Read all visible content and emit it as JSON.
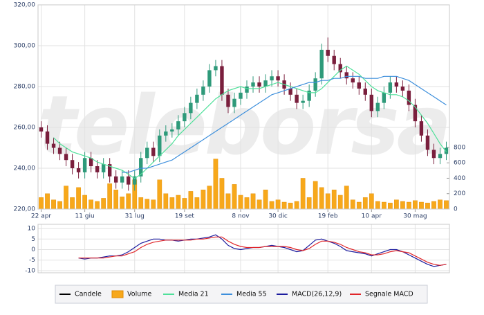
{
  "chart_data": [
    {
      "type": "candlestick",
      "watermark": "teleborsa",
      "grid": true,
      "xlim": [
        -0.5,
        65.5
      ],
      "xticks": [
        {
          "value": 0,
          "label": "22 apr"
        },
        {
          "value": 7,
          "label": "11 giu"
        },
        {
          "value": 15,
          "label": "31 lug"
        },
        {
          "value": 23,
          "label": "19 set"
        },
        {
          "value": 32,
          "label": "8 nov"
        },
        {
          "value": 38,
          "label": "30 dic"
        },
        {
          "value": 46,
          "label": "19 feb"
        },
        {
          "value": 53,
          "label": "10 apr"
        },
        {
          "value": 60,
          "label": "30 mag"
        }
      ],
      "ylim": [
        220,
        320
      ],
      "yticks": [
        {
          "value": 320,
          "label": "320,00"
        },
        {
          "value": 300,
          "label": "300,00"
        },
        {
          "value": 280,
          "label": "280,00"
        },
        {
          "value": 260,
          "label": "260,00"
        },
        {
          "value": 240,
          "label": "240,00"
        },
        {
          "value": 220,
          "label": "220,00"
        }
      ],
      "y2lim": [
        0,
        2650
      ],
      "y2ticks": [
        0,
        200,
        400,
        600,
        800
      ],
      "series": [
        {
          "name": "Candele",
          "color": "#000000",
          "up_color": "#2e9a7a",
          "down_color": "#7a1f3d",
          "open": [
            260,
            258,
            252,
            250,
            247,
            244,
            240,
            238,
            245,
            241,
            238,
            242,
            236,
            233,
            236,
            232,
            236,
            245,
            250,
            246,
            256,
            258,
            259,
            263,
            267,
            272,
            276,
            280,
            288,
            290,
            276,
            270,
            274,
            277,
            280,
            282,
            280,
            283,
            285,
            283,
            279,
            276,
            272,
            273,
            278,
            284,
            298,
            295,
            291,
            287,
            284,
            282,
            279,
            276,
            268,
            272,
            277,
            282,
            280,
            278,
            271,
            263,
            256,
            249,
            245,
            247
          ],
          "high": [
            263,
            261,
            255,
            253,
            250,
            247,
            243,
            248,
            248,
            244,
            245,
            245,
            239,
            239,
            239,
            239,
            248,
            253,
            253,
            259,
            261,
            262,
            266,
            270,
            275,
            279,
            283,
            291,
            293,
            293,
            279,
            277,
            280,
            283,
            285,
            285,
            286,
            288,
            288,
            286,
            282,
            279,
            276,
            281,
            287,
            301,
            304,
            298,
            294,
            290,
            287,
            285,
            282,
            279,
            275,
            280,
            285,
            285,
            283,
            281,
            274,
            266,
            259,
            252,
            250,
            253
          ],
          "low": [
            255,
            249,
            247,
            244,
            241,
            237,
            235,
            235,
            238,
            235,
            235,
            233,
            230,
            230,
            229,
            229,
            233,
            242,
            243,
            243,
            253,
            255,
            256,
            260,
            264,
            269,
            273,
            277,
            285,
            273,
            267,
            267,
            271,
            274,
            277,
            277,
            277,
            280,
            280,
            276,
            273,
            269,
            269,
            270,
            275,
            281,
            292,
            288,
            284,
            281,
            279,
            276,
            273,
            265,
            265,
            269,
            274,
            277,
            275,
            268,
            260,
            253,
            246,
            242,
            242,
            244
          ],
          "close": [
            258,
            252,
            250,
            247,
            244,
            240,
            238,
            245,
            241,
            238,
            242,
            236,
            233,
            236,
            232,
            236,
            245,
            250,
            246,
            256,
            258,
            259,
            263,
            267,
            272,
            276,
            280,
            288,
            290,
            276,
            270,
            274,
            277,
            280,
            282,
            280,
            283,
            285,
            283,
            279,
            276,
            272,
            273,
            278,
            284,
            298,
            295,
            291,
            287,
            284,
            282,
            279,
            276,
            268,
            272,
            277,
            282,
            280,
            278,
            271,
            263,
            256,
            249,
            245,
            247,
            250
          ]
        },
        {
          "name": "Volume",
          "type": "bar",
          "axis": "y2",
          "color": "#f7a81b",
          "values": [
            150,
            200,
            120,
            100,
            300,
            150,
            280,
            180,
            120,
            100,
            140,
            330,
            250,
            160,
            200,
            380,
            150,
            130,
            120,
            380,
            200,
            150,
            180,
            140,
            230,
            150,
            250,
            300,
            650,
            400,
            200,
            320,
            180,
            150,
            200,
            120,
            250,
            100,
            120,
            90,
            80,
            100,
            400,
            150,
            360,
            280,
            200,
            250,
            180,
            300,
            120,
            90,
            150,
            200,
            100,
            90,
            80,
            120,
            100,
            90,
            110,
            90,
            80,
            100,
            120,
            110
          ]
        },
        {
          "name": "Media 21",
          "type": "line",
          "color": "#4fe09a",
          "values": [
            null,
            null,
            255,
            252,
            250,
            248,
            247,
            246,
            245,
            243,
            242,
            241,
            240,
            239,
            237,
            235,
            237,
            240,
            243,
            246,
            249,
            252,
            256,
            259,
            262,
            265,
            268,
            271,
            274,
            276,
            278,
            279,
            280,
            279,
            279,
            279,
            280,
            281,
            282,
            281,
            280,
            279,
            278,
            277,
            277,
            279,
            282,
            285,
            288,
            290,
            288,
            286,
            283,
            280,
            278,
            277,
            276,
            276,
            275,
            273,
            270,
            266,
            262,
            257,
            252,
            248
          ]
        },
        {
          "name": "Media 55",
          "type": "line",
          "color": "#3d8fdc",
          "values": [
            null,
            null,
            null,
            null,
            null,
            null,
            null,
            null,
            null,
            null,
            null,
            null,
            null,
            238,
            238,
            239,
            240,
            240,
            241,
            242,
            243,
            244,
            246,
            248,
            250,
            252,
            254,
            256,
            258,
            260,
            262,
            264,
            266,
            268,
            270,
            272,
            274,
            276,
            277,
            278,
            279,
            280,
            281,
            282,
            282,
            283,
            283,
            284,
            284,
            285,
            285,
            285,
            284,
            284,
            284,
            285,
            285,
            285,
            284,
            283,
            281,
            279,
            277,
            275,
            273,
            271
          ]
        }
      ]
    },
    {
      "type": "line",
      "grid": true,
      "xlim": [
        -0.5,
        65.5
      ],
      "ylim": [
        -11,
        12
      ],
      "yticks": [
        10,
        5,
        0,
        -5,
        -10
      ],
      "series": [
        {
          "name": "MACD(26,12,9)",
          "color": "#1c1c9e",
          "values": [
            null,
            null,
            null,
            null,
            null,
            null,
            -4,
            -4.5,
            -4,
            -4,
            -3.5,
            -3,
            -3,
            -2.5,
            -1,
            1,
            3,
            4,
            5,
            5,
            4.5,
            4.5,
            4,
            4.5,
            5,
            5,
            5.5,
            6,
            7,
            5,
            2,
            0.5,
            0,
            0.5,
            1,
            1,
            1.5,
            2,
            1.5,
            1,
            0,
            -1,
            -0.5,
            2,
            4.5,
            5,
            4,
            3,
            1.5,
            -0.5,
            -1,
            -1.5,
            -2,
            -3,
            -2,
            -1,
            0,
            0,
            -1,
            -2.5,
            -4,
            -5.5,
            -7,
            -8,
            -7.5,
            -7
          ]
        },
        {
          "name": "Segnale MACD",
          "color": "#e0262a",
          "values": [
            null,
            null,
            null,
            null,
            null,
            null,
            -4,
            -4,
            -4,
            -4,
            -4,
            -3.5,
            -3,
            -3,
            -2,
            -1,
            1,
            2.5,
            3.5,
            4,
            4.5,
            4.5,
            4.5,
            4.5,
            4.5,
            5,
            5,
            5.5,
            6,
            6,
            4,
            2.5,
            1.5,
            1,
            1,
            1,
            1.5,
            1.5,
            1.5,
            1.5,
            1,
            0,
            -0.5,
            0.5,
            2.5,
            4,
            4,
            3.5,
            2.5,
            1,
            0,
            -1,
            -1.5,
            -2.5,
            -2.5,
            -2,
            -1,
            -0.5,
            -1,
            -1.5,
            -3,
            -4.5,
            -6,
            -7,
            -7.5,
            -7
          ]
        }
      ]
    }
  ]
}
